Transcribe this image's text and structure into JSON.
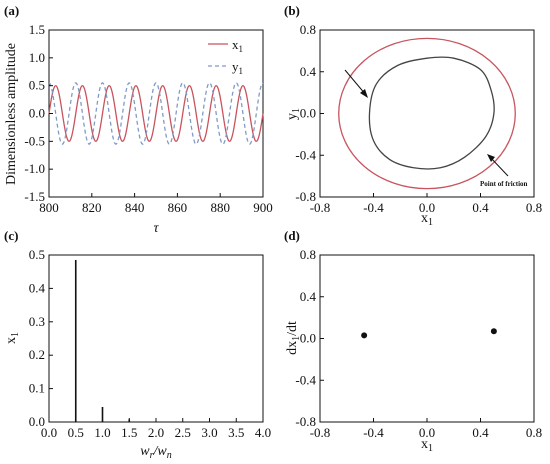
{
  "panels": {
    "a": "(a)",
    "b": "(b)",
    "c": "(c)",
    "d": "(d)"
  },
  "colors": {
    "x1": "#c8545e",
    "y1": "#7f9bc8",
    "orbit_outer": "#c8545e",
    "orbit_inner": "#444444",
    "ink": "#111111"
  },
  "chart_data": [
    {
      "id": "a",
      "type": "line",
      "xlabel": "τ",
      "ylabel": "Dimensionless amplitude",
      "xlim": [
        800,
        900
      ],
      "ylim": [
        -1.5,
        1.5
      ],
      "xticks": [
        "800",
        "820",
        "840",
        "860",
        "880",
        "900"
      ],
      "yticks": [
        "1.5",
        "1.0",
        "0.5",
        "0.0",
        "-0.5",
        "-1.0",
        "-1.5"
      ],
      "series": [
        {
          "name": "x1",
          "style": "solid",
          "amplitude": 0.5,
          "period": 12.5,
          "phase_deg": 0
        },
        {
          "name": "y1",
          "style": "dashed",
          "amplitude": 0.55,
          "period": 12.5,
          "phase_deg": 90
        }
      ],
      "legend": [
        "x1",
        "y1"
      ],
      "legend_position": "top-right",
      "grid": false
    },
    {
      "id": "b",
      "type": "line",
      "xlabel": "x1",
      "ylabel": "y1",
      "xlim": [
        -0.8,
        0.8
      ],
      "ylim": [
        -0.8,
        0.8
      ],
      "xticks": [
        "-0.8",
        "-0.4",
        "0.0",
        "0.4",
        "0.8"
      ],
      "yticks": [
        "0.8",
        "0.4",
        "0.0",
        "-0.4",
        "-0.8"
      ],
      "series": [
        {
          "kind": "ellipse",
          "center": [
            0,
            0
          ],
          "rx": 0.66,
          "ry": 0.72
        },
        {
          "kind": "closed_curve",
          "points": [
            [
              -0.43,
              0.0
            ],
            [
              -0.38,
              0.28
            ],
            [
              -0.22,
              0.46
            ],
            [
              0.0,
              0.53
            ],
            [
              0.2,
              0.53
            ],
            [
              0.4,
              0.42
            ],
            [
              0.48,
              0.22
            ],
            [
              0.5,
              0.0
            ],
            [
              0.44,
              -0.22
            ],
            [
              0.28,
              -0.42
            ],
            [
              0.1,
              -0.52
            ],
            [
              -0.1,
              -0.52
            ],
            [
              -0.28,
              -0.44
            ],
            [
              -0.4,
              -0.26
            ]
          ]
        }
      ],
      "annotation": "Point of friction",
      "grid": false
    },
    {
      "id": "c",
      "type": "bar",
      "xlabel": "wr/wn",
      "ylabel": "x1",
      "xlim": [
        0.0,
        4.0
      ],
      "ylim": [
        0,
        0.5
      ],
      "xticks": [
        "0.0",
        "0.5",
        "1.0",
        "1.5",
        "2.0",
        "2.5",
        "3.0",
        "3.5",
        "4.0"
      ],
      "yticks": [
        "0.5",
        "0.4",
        "0.3",
        "0.2",
        "0.1",
        "0.0"
      ],
      "x": [
        0.5,
        1.0,
        1.5
      ],
      "values": [
        0.485,
        0.045,
        0.008
      ],
      "grid": false
    },
    {
      "id": "d",
      "type": "scatter",
      "xlabel": "x1",
      "ylabel": "dx1/dt",
      "xlim": [
        -0.8,
        0.8
      ],
      "ylim": [
        -0.8,
        0.8
      ],
      "xticks": [
        "-0.8",
        "-0.4",
        "0.0",
        "0.4",
        "0.8"
      ],
      "yticks": [
        "0.8",
        "0.4",
        "0.0",
        "-0.4",
        "-0.8"
      ],
      "points": [
        [
          -0.47,
          0.03
        ],
        [
          0.5,
          0.07
        ]
      ],
      "grid": false
    }
  ]
}
